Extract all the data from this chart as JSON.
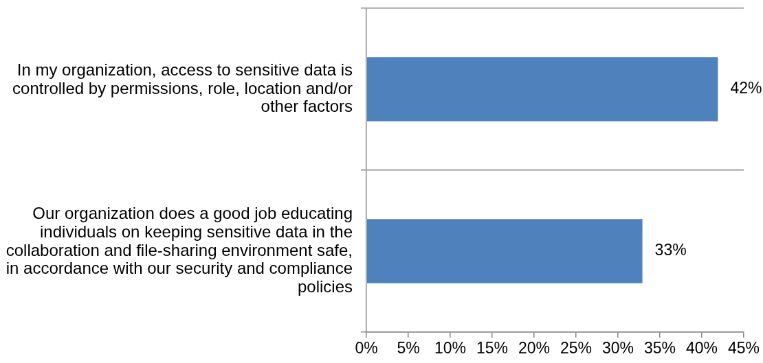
{
  "chart_data": {
    "type": "bar",
    "orientation": "horizontal",
    "categories": [
      "In my organization, access to sensitive data is controlled by permissions, role, location and/or other factors",
      "Our organization does a good job educating individuals on keeping sensitive data in the collaboration and file-sharing environment safe, in accordance with our security and compliance policies"
    ],
    "values": [
      42,
      33
    ],
    "color": "#4f81bd",
    "value_labels": [
      "42%",
      "33%"
    ],
    "xlim": [
      0,
      45
    ],
    "xticks": [
      {
        "value": 0,
        "label": "0%"
      },
      {
        "value": 5,
        "label": "5%"
      },
      {
        "value": 10,
        "label": "10%"
      },
      {
        "value": 15,
        "label": "15%"
      },
      {
        "value": 20,
        "label": "20%"
      },
      {
        "value": 25,
        "label": "25%"
      },
      {
        "value": 30,
        "label": "30%"
      },
      {
        "value": 35,
        "label": "35%"
      },
      {
        "value": 40,
        "label": "40%"
      },
      {
        "value": 45,
        "label": "45%"
      }
    ],
    "grid": "y"
  }
}
